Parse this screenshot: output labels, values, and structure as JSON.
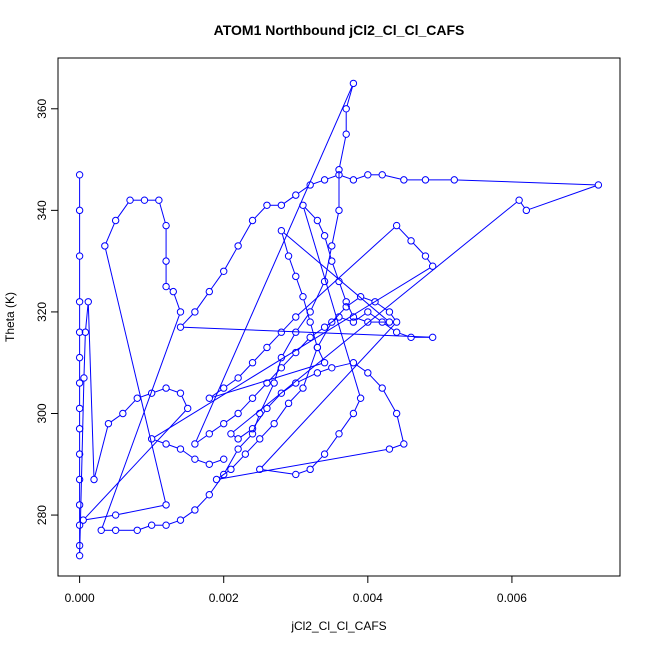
{
  "chart_data": {
    "type": "scatter",
    "title": "ATOM1 Northbound jCl2_Cl_Cl_CAFS",
    "xlabel": "jCl2_Cl_Cl_CAFS",
    "ylabel": "Theta (K)",
    "xlim": [
      -0.0003,
      0.0075
    ],
    "ylim": [
      268,
      370
    ],
    "xticks": [
      0.0,
      0.002,
      0.004,
      0.006
    ],
    "xtick_labels": [
      "0.000",
      "0.002",
      "0.004",
      "0.006"
    ],
    "yticks": [
      280,
      300,
      320,
      340,
      360
    ],
    "ytick_labels": [
      "280",
      "300",
      "320",
      "340",
      "360"
    ],
    "grid": false,
    "series": [
      {
        "color": "#0000ff",
        "marker": "open-circle",
        "connected": true,
        "points": [
          [
            0.0,
            347
          ],
          [
            0.0,
            340
          ],
          [
            0.0,
            331
          ],
          [
            0.0,
            322
          ],
          [
            0.0,
            316
          ],
          [
            0.0,
            311
          ],
          [
            0.0,
            306
          ],
          [
            0.0,
            301
          ],
          [
            0.0,
            297
          ],
          [
            0.0,
            292
          ],
          [
            0.0,
            287
          ],
          [
            0.0,
            282
          ],
          [
            0.0,
            278
          ],
          [
            0.0,
            274
          ],
          [
            0.0,
            272
          ],
          [
            6e-05,
            307
          ],
          [
            8e-05,
            316
          ],
          [
            0.00012,
            322
          ],
          [
            0.0002,
            287
          ],
          [
            0.0004,
            298
          ],
          [
            0.0006,
            300
          ],
          [
            0.0008,
            303
          ],
          [
            0.001,
            304
          ],
          [
            0.0012,
            305
          ],
          [
            0.0014,
            304
          ],
          [
            0.0015,
            301
          ],
          [
            5e-05,
            279
          ],
          [
            0.0005,
            280
          ],
          [
            0.0012,
            282
          ],
          [
            0.00035,
            333
          ],
          [
            0.0005,
            338
          ],
          [
            0.0007,
            342
          ],
          [
            0.0009,
            342
          ],
          [
            0.0011,
            342
          ],
          [
            0.0012,
            337
          ],
          [
            0.0012,
            330
          ],
          [
            0.0012,
            325
          ],
          [
            0.0013,
            324
          ],
          [
            0.0014,
            320
          ],
          [
            0.0003,
            277
          ],
          [
            0.0005,
            277
          ],
          [
            0.0008,
            277
          ],
          [
            0.001,
            278
          ],
          [
            0.0012,
            278
          ],
          [
            0.0014,
            279
          ],
          [
            0.0016,
            281
          ],
          [
            0.0018,
            284
          ],
          [
            0.002,
            288
          ],
          [
            0.0022,
            293
          ],
          [
            0.0024,
            296
          ],
          [
            0.0025,
            300
          ],
          [
            0.0027,
            306
          ],
          [
            0.0028,
            311
          ],
          [
            0.003,
            316
          ],
          [
            0.0032,
            320
          ],
          [
            0.0034,
            326
          ],
          [
            0.0035,
            333
          ],
          [
            0.0036,
            340
          ],
          [
            0.0036,
            348
          ],
          [
            0.0037,
            355
          ],
          [
            0.0037,
            360
          ],
          [
            0.0038,
            365
          ],
          [
            0.0016,
            294
          ],
          [
            0.0018,
            296
          ],
          [
            0.002,
            298
          ],
          [
            0.0022,
            300
          ],
          [
            0.0024,
            303
          ],
          [
            0.0026,
            306
          ],
          [
            0.0028,
            309
          ],
          [
            0.003,
            312
          ],
          [
            0.0032,
            315
          ],
          [
            0.0034,
            317
          ],
          [
            0.0036,
            319
          ],
          [
            0.0038,
            318
          ],
          [
            0.004,
            320
          ],
          [
            0.0042,
            318
          ],
          [
            0.0044,
            316
          ],
          [
            0.0046,
            315
          ],
          [
            0.0049,
            315
          ],
          [
            0.0014,
            317
          ],
          [
            0.0016,
            320
          ],
          [
            0.0018,
            324
          ],
          [
            0.002,
            328
          ],
          [
            0.0022,
            333
          ],
          [
            0.0024,
            338
          ],
          [
            0.0026,
            341
          ],
          [
            0.0028,
            341
          ],
          [
            0.003,
            343
          ],
          [
            0.0032,
            345
          ],
          [
            0.0034,
            346
          ],
          [
            0.0036,
            347
          ],
          [
            0.0038,
            346
          ],
          [
            0.004,
            347
          ],
          [
            0.0042,
            347
          ],
          [
            0.0045,
            346
          ],
          [
            0.0048,
            346
          ],
          [
            0.0052,
            346
          ],
          [
            0.0072,
            345
          ],
          [
            0.0062,
            340
          ],
          [
            0.0061,
            342
          ],
          [
            0.0021,
            296
          ],
          [
            0.0022,
            295
          ],
          [
            0.0024,
            297
          ],
          [
            0.0026,
            301
          ],
          [
            0.0028,
            304
          ],
          [
            0.003,
            306
          ],
          [
            0.0033,
            308
          ],
          [
            0.0035,
            309
          ],
          [
            0.0038,
            310
          ],
          [
            0.004,
            308
          ],
          [
            0.0042,
            305
          ],
          [
            0.0044,
            300
          ],
          [
            0.0045,
            294
          ],
          [
            0.0043,
            293
          ],
          [
            0.0019,
            287
          ],
          [
            0.0021,
            289
          ],
          [
            0.0023,
            292
          ],
          [
            0.0025,
            295
          ],
          [
            0.0027,
            298
          ],
          [
            0.0029,
            302
          ],
          [
            0.0031,
            305
          ],
          [
            0.0033,
            313
          ],
          [
            0.0035,
            318
          ],
          [
            0.0037,
            321
          ],
          [
            0.0039,
            323
          ],
          [
            0.0041,
            322
          ],
          [
            0.0043,
            320
          ],
          [
            0.0044,
            318
          ],
          [
            0.0025,
            289
          ],
          [
            0.003,
            288
          ],
          [
            0.0032,
            289
          ],
          [
            0.0034,
            292
          ],
          [
            0.0036,
            296
          ],
          [
            0.0038,
            300
          ],
          [
            0.0039,
            303
          ],
          [
            0.0031,
            341
          ],
          [
            0.0033,
            338
          ],
          [
            0.0034,
            335
          ],
          [
            0.0035,
            330
          ],
          [
            0.0036,
            326
          ],
          [
            0.0037,
            322
          ],
          [
            0.0038,
            319
          ],
          [
            0.004,
            318
          ],
          [
            0.0043,
            318
          ],
          [
            0.0028,
            336
          ],
          [
            0.0029,
            331
          ],
          [
            0.003,
            327
          ],
          [
            0.0031,
            323
          ],
          [
            0.0032,
            318
          ],
          [
            0.0033,
            313
          ],
          [
            0.0034,
            310
          ],
          [
            0.0018,
            303
          ],
          [
            0.002,
            305
          ],
          [
            0.0022,
            307
          ],
          [
            0.0024,
            310
          ],
          [
            0.0026,
            313
          ],
          [
            0.0028,
            316
          ],
          [
            0.003,
            319
          ],
          [
            0.0044,
            337
          ],
          [
            0.0046,
            334
          ],
          [
            0.0048,
            331
          ],
          [
            0.0049,
            329
          ],
          [
            0.001,
            295
          ],
          [
            0.0012,
            294
          ],
          [
            0.0014,
            293
          ],
          [
            0.0016,
            291
          ],
          [
            0.0018,
            290
          ],
          [
            0.002,
            291
          ]
        ]
      }
    ]
  }
}
